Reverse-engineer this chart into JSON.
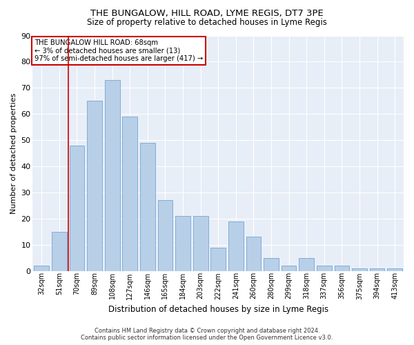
{
  "title": "THE BUNGALOW, HILL ROAD, LYME REGIS, DT7 3PE",
  "subtitle": "Size of property relative to detached houses in Lyme Regis",
  "xlabel": "Distribution of detached houses by size in Lyme Regis",
  "ylabel": "Number of detached properties",
  "footer_line1": "Contains HM Land Registry data © Crown copyright and database right 2024.",
  "footer_line2": "Contains public sector information licensed under the Open Government Licence v3.0.",
  "annotation_line1": "THE BUNGALOW HILL ROAD: 68sqm",
  "annotation_line2": "← 3% of detached houses are smaller (13)",
  "annotation_line3": "97% of semi-detached houses are larger (417) →",
  "bar_color": "#b8cfe8",
  "bar_edge_color": "#7fadd4",
  "vline_color": "#cc0000",
  "background_color": "#e8eef7",
  "categories": [
    "32sqm",
    "51sqm",
    "70sqm",
    "89sqm",
    "108sqm",
    "127sqm",
    "146sqm",
    "165sqm",
    "184sqm",
    "203sqm",
    "222sqm",
    "241sqm",
    "260sqm",
    "280sqm",
    "299sqm",
    "318sqm",
    "337sqm",
    "356sqm",
    "375sqm",
    "394sqm",
    "413sqm"
  ],
  "values": [
    2,
    15,
    48,
    65,
    73,
    59,
    49,
    27,
    21,
    21,
    9,
    19,
    13,
    5,
    2,
    5,
    2,
    2,
    1,
    1,
    1
  ],
  "ylim": [
    0,
    90
  ],
  "yticks": [
    0,
    10,
    20,
    30,
    40,
    50,
    60,
    70,
    80,
    90
  ],
  "vline_x": 1.5
}
